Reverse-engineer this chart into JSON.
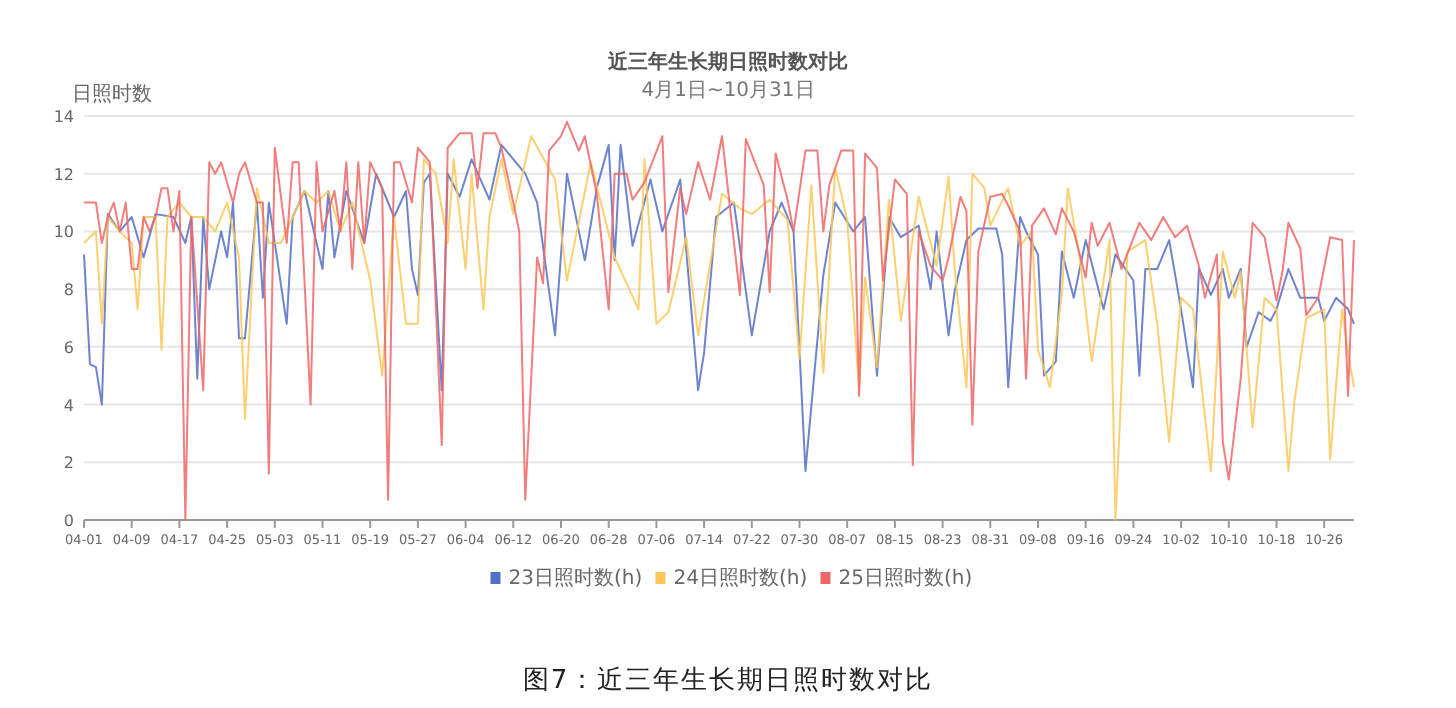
{
  "chart_data": {
    "type": "line",
    "title": "近三年生长期日照时数对比",
    "subtitle": "4月1日~10月31日",
    "ylabel": "日照时数",
    "annotations": [
      "图7：近三年生长期日照时数对比"
    ],
    "legend": "bottom",
    "grid": "y",
    "xlim": [
      "--04-01",
      "--10-31"
    ],
    "xticks": [
      {
        "value": "--04-01",
        "label": "04-01"
      },
      {
        "value": "--04-09",
        "label": "04-09"
      },
      {
        "value": "--04-17",
        "label": "04-17"
      },
      {
        "value": "--04-25",
        "label": "04-25"
      },
      {
        "value": "--05-03",
        "label": "05-03"
      },
      {
        "value": "--05-11",
        "label": "05-11"
      },
      {
        "value": "--05-19",
        "label": "05-19"
      },
      {
        "value": "--05-27",
        "label": "05-27"
      },
      {
        "value": "--06-04",
        "label": "06-04"
      },
      {
        "value": "--06-12",
        "label": "06-12"
      },
      {
        "value": "--06-20",
        "label": "06-20"
      },
      {
        "value": "--06-28",
        "label": "06-28"
      },
      {
        "value": "--07-06",
        "label": "07-06"
      },
      {
        "value": "--07-14",
        "label": "07-14"
      },
      {
        "value": "--07-22",
        "label": "07-22"
      },
      {
        "value": "--07-30",
        "label": "07-30"
      },
      {
        "value": "--08-07",
        "label": "08-07"
      },
      {
        "value": "--08-15",
        "label": "08-15"
      },
      {
        "value": "--08-23",
        "label": "08-23"
      },
      {
        "value": "--08-31",
        "label": "08-31"
      },
      {
        "value": "--09-08",
        "label": "09-08"
      },
      {
        "value": "--09-16",
        "label": "09-16"
      },
      {
        "value": "--09-24",
        "label": "09-24"
      },
      {
        "value": "--10-02",
        "label": "10-02"
      },
      {
        "value": "--10-10",
        "label": "10-10"
      },
      {
        "value": "--10-18",
        "label": "10-18"
      },
      {
        "value": "--10-26",
        "label": "10-26"
      }
    ],
    "ylim": [
      0,
      14
    ],
    "yticks": [
      0,
      2,
      4,
      6,
      8,
      10,
      12,
      14
    ],
    "series": [
      {
        "name": "23日照时数(h)",
        "color": "#5470c6",
        "x": [
          "--04-01",
          "--04-02",
          "--04-03",
          "--04-04",
          "--04-05",
          "--04-07",
          "--04-09",
          "--04-11",
          "--04-13",
          "--04-16",
          "--04-18",
          "--04-19",
          "--04-20",
          "--04-21",
          "--04-22",
          "--04-24",
          "--04-25",
          "--04-26",
          "--04-27",
          "--04-28",
          "--04-30",
          "--05-01",
          "--05-02",
          "--05-05",
          "--05-06",
          "--05-08",
          "--05-11",
          "--05-12",
          "--05-13",
          "--05-15",
          "--05-18",
          "--05-20",
          "--05-23",
          "--05-25",
          "--05-26",
          "--05-27",
          "--05-28",
          "--05-29",
          "--05-31",
          "--06-01",
          "--06-03",
          "--06-05",
          "--06-08",
          "--06-10",
          "--06-14",
          "--06-16",
          "--06-19",
          "--06-21",
          "--06-24",
          "--06-26",
          "--06-28",
          "--06-29",
          "--06-30",
          "--07-02",
          "--07-05",
          "--07-07",
          "--07-10",
          "--07-13",
          "--07-14",
          "--07-16",
          "--07-19",
          "--07-22",
          "--07-25",
          "--07-27",
          "--07-29",
          "--07-31",
          "--08-03",
          "--08-05",
          "--08-08",
          "--08-10",
          "--08-12",
          "--08-14",
          "--08-16",
          "--08-19",
          "--08-21",
          "--08-22",
          "--08-24",
          "--08-25",
          "--08-27",
          "--08-29",
          "--09-01",
          "--09-02",
          "--09-03",
          "--09-05",
          "--09-06",
          "--09-08",
          "--09-09",
          "--09-11",
          "--09-12",
          "--09-14",
          "--09-16",
          "--09-19",
          "--09-21",
          "--09-24",
          "--09-25",
          "--09-26",
          "--09-28",
          "--09-30",
          "--10-02",
          "--10-04",
          "--10-05",
          "--10-07",
          "--10-09",
          "--10-10",
          "--10-12",
          "--10-13",
          "--10-15",
          "--10-17",
          "--10-18",
          "--10-20",
          "--10-22",
          "--10-25",
          "--10-26",
          "--10-28",
          "--10-30",
          "--10-31"
        ],
        "values": [
          9.2,
          5.4,
          5.3,
          4.0,
          10.6,
          10.0,
          10.5,
          9.1,
          10.6,
          10.5,
          9.6,
          10.5,
          4.9,
          10.5,
          8.0,
          10.0,
          9.1,
          11.0,
          6.3,
          6.3,
          11.0,
          7.7,
          11.0,
          6.8,
          10.5,
          11.4,
          8.7,
          11.4,
          9.1,
          11.4,
          9.6,
          12.0,
          10.5,
          11.4,
          8.7,
          7.8,
          11.7,
          12.0,
          4.5,
          12.0,
          11.2,
          12.5,
          11.1,
          13.0,
          12.0,
          11.0,
          6.4,
          12.0,
          9.0,
          11.5,
          13.0,
          9.0,
          13.0,
          9.5,
          11.8,
          10.0,
          11.8,
          4.5,
          5.8,
          10.5,
          11.0,
          6.4,
          10.0,
          11.0,
          10.0,
          1.7,
          8.5,
          11.0,
          10.0,
          10.5,
          5.0,
          10.5,
          9.8,
          10.2,
          8.0,
          10.0,
          6.4,
          7.9,
          9.7,
          10.1,
          10.1,
          9.2,
          4.6,
          10.5,
          10.0,
          9.2,
          5.0,
          5.5,
          9.3,
          7.7,
          9.7,
          7.3,
          9.2,
          8.3,
          5.0,
          8.7,
          8.7,
          9.7,
          7.3,
          4.6,
          8.7,
          7.8,
          8.7,
          7.7,
          8.7,
          6.0,
          7.2,
          6.9,
          7.3,
          8.7,
          7.7,
          7.7,
          6.9,
          7.7,
          7.3,
          6.8
        ]
      },
      {
        "name": "24日照时数(h)",
        "color": "#fac858",
        "x": [
          "--04-01",
          "--04-03",
          "--04-04",
          "--04-05",
          "--04-07",
          "--04-09",
          "--04-10",
          "--04-11",
          "--04-13",
          "--04-14",
          "--04-15",
          "--04-17",
          "--04-19",
          "--04-21",
          "--04-23",
          "--04-25",
          "--04-27",
          "--04-28",
          "--04-30",
          "--05-02",
          "--05-04",
          "--05-06",
          "--05-08",
          "--05-10",
          "--05-12",
          "--05-14",
          "--05-16",
          "--05-19",
          "--05-21",
          "--05-23",
          "--05-25",
          "--05-27",
          "--05-28",
          "--05-30",
          "--06-01",
          "--06-02",
          "--06-04",
          "--06-05",
          "--06-07",
          "--06-08",
          "--06-10",
          "--06-12",
          "--06-15",
          "--06-19",
          "--06-21",
          "--06-25",
          "--06-29",
          "--07-03",
          "--07-04",
          "--07-06",
          "--07-08",
          "--07-11",
          "--07-13",
          "--07-17",
          "--07-20",
          "--07-22",
          "--07-25",
          "--07-28",
          "--07-30",
          "--08-01",
          "--08-03",
          "--08-05",
          "--08-07",
          "--08-09",
          "--08-10",
          "--08-12",
          "--08-14",
          "--08-16",
          "--08-19",
          "--08-22",
          "--08-24",
          "--08-25",
          "--08-27",
          "--08-28",
          "--08-30",
          "--08-31",
          "--09-03",
          "--09-05",
          "--09-07",
          "--09-08",
          "--09-10",
          "--09-12",
          "--09-13",
          "--09-15",
          "--09-17",
          "--09-20",
          "--09-21",
          "--09-23",
          "--09-26",
          "--09-28",
          "--09-30",
          "--10-02",
          "--10-04",
          "--10-07",
          "--10-09",
          "--10-11",
          "--10-12",
          "--10-14",
          "--10-16",
          "--10-18",
          "--10-20",
          "--10-21",
          "--10-23",
          "--10-26",
          "--10-27",
          "--10-29",
          "--10-30",
          "--10-31"
        ],
        "values": [
          9.6,
          10.0,
          6.8,
          10.5,
          10.0,
          9.6,
          7.3,
          10.5,
          10.5,
          5.9,
          10.5,
          11.0,
          10.5,
          10.5,
          10.0,
          11.0,
          9.1,
          3.5,
          11.5,
          9.6,
          9.6,
          10.5,
          11.4,
          11.0,
          11.4,
          10.0,
          11.0,
          8.3,
          5.0,
          10.5,
          6.8,
          6.8,
          12.5,
          12.0,
          9.6,
          12.5,
          8.7,
          12.0,
          7.3,
          10.5,
          12.5,
          10.6,
          13.3,
          11.8,
          8.3,
          12.4,
          9.1,
          7.3,
          12.5,
          6.8,
          7.2,
          9.8,
          6.4,
          11.3,
          10.8,
          10.6,
          11.1,
          10.4,
          5.6,
          11.6,
          5.1,
          12.2,
          10.4,
          4.5,
          8.4,
          5.3,
          11.1,
          6.9,
          11.2,
          8.8,
          11.9,
          8.8,
          4.6,
          12.0,
          11.5,
          10.2,
          11.5,
          9.5,
          10.0,
          5.9,
          4.6,
          7.8,
          11.5,
          9.1,
          5.5,
          9.7,
          0.0,
          9.3,
          9.7,
          6.8,
          2.7,
          7.7,
          7.3,
          1.7,
          9.3,
          7.7,
          8.6,
          3.2,
          7.7,
          7.3,
          1.7,
          4.1,
          7.0,
          7.3,
          2.1,
          7.3,
          5.8,
          4.6
        ]
      },
      {
        "name": "25日照时数(h)",
        "color": "#ee6666",
        "x": [
          "--04-01",
          "--04-03",
          "--04-04",
          "--04-05",
          "--04-06",
          "--04-07",
          "--04-08",
          "--04-09",
          "--04-10",
          "--04-11",
          "--04-12",
          "--04-13",
          "--04-14",
          "--04-15",
          "--04-16",
          "--04-17",
          "--04-18",
          "--04-19",
          "--04-21",
          "--04-22",
          "--04-23",
          "--04-24",
          "--04-26",
          "--04-27",
          "--04-28",
          "--04-30",
          "--05-01",
          "--05-02",
          "--05-03",
          "--05-05",
          "--05-06",
          "--05-07",
          "--05-09",
          "--05-10",
          "--05-11",
          "--05-13",
          "--05-14",
          "--05-15",
          "--05-16",
          "--05-17",
          "--05-18",
          "--05-19",
          "--05-21",
          "--05-22",
          "--05-23",
          "--05-24",
          "--05-26",
          "--05-27",
          "--05-29",
          "--05-31",
          "--06-01",
          "--06-03",
          "--06-05",
          "--06-06",
          "--06-07",
          "--06-09",
          "--06-10",
          "--06-12",
          "--06-13",
          "--06-14",
          "--06-16",
          "--06-17",
          "--06-18",
          "--06-20",
          "--06-21",
          "--06-23",
          "--06-24",
          "--06-26",
          "--06-28",
          "--06-29",
          "--07-01",
          "--07-02",
          "--07-04",
          "--07-07",
          "--07-08",
          "--07-10",
          "--07-11",
          "--07-13",
          "--07-15",
          "--07-17",
          "--07-20",
          "--07-21",
          "--07-24",
          "--07-25",
          "--07-26",
          "--07-28",
          "--07-29",
          "--07-31",
          "--08-02",
          "--08-03",
          "--08-04",
          "--08-06",
          "--08-08",
          "--08-09",
          "--08-10",
          "--08-12",
          "--08-13",
          "--08-15",
          "--08-17",
          "--08-18",
          "--08-19",
          "--08-21",
          "--08-23",
          "--08-24",
          "--08-26",
          "--08-27",
          "--08-28",
          "--08-29",
          "--08-31",
          "--09-02",
          "--09-03",
          "--09-05",
          "--09-06",
          "--09-07",
          "--09-09",
          "--09-11",
          "--09-12",
          "--09-14",
          "--09-16",
          "--09-17",
          "--09-18",
          "--09-20",
          "--09-22",
          "--09-25",
          "--09-27",
          "--09-29",
          "--10-01",
          "--10-03",
          "--10-05",
          "--10-06",
          "--10-08",
          "--10-09",
          "--10-10",
          "--10-12",
          "--10-13",
          "--10-14",
          "--10-16",
          "--10-18",
          "--10-19",
          "--10-20",
          "--10-22",
          "--10-23",
          "--10-25",
          "--10-27",
          "--10-29",
          "--10-30",
          "--10-31"
        ],
        "values": [
          11.0,
          11.0,
          9.6,
          10.5,
          11.0,
          10.0,
          11.0,
          8.7,
          8.7,
          10.5,
          10.0,
          10.5,
          11.5,
          11.5,
          10.0,
          11.4,
          0.0,
          10.5,
          4.5,
          12.4,
          12.0,
          12.4,
          11.0,
          12.0,
          12.4,
          11.0,
          11.0,
          1.6,
          12.9,
          9.6,
          12.4,
          12.4,
          4.0,
          12.4,
          10.0,
          11.4,
          10.0,
          12.4,
          8.7,
          12.4,
          9.6,
          12.4,
          11.5,
          0.7,
          12.4,
          12.4,
          11.0,
          12.9,
          12.4,
          2.6,
          12.9,
          13.4,
          13.4,
          11.5,
          13.4,
          13.4,
          12.9,
          11.0,
          10.0,
          0.7,
          9.1,
          8.2,
          12.8,
          13.3,
          13.8,
          12.8,
          13.3,
          11.3,
          7.3,
          12.0,
          12.0,
          11.1,
          11.7,
          13.3,
          7.9,
          11.5,
          10.6,
          12.4,
          11.1,
          13.3,
          7.8,
          13.2,
          11.6,
          7.9,
          12.7,
          11.1,
          10.0,
          12.8,
          12.8,
          10.0,
          11.6,
          12.8,
          12.8,
          4.3,
          12.7,
          12.2,
          8.3,
          11.8,
          11.3,
          1.9,
          10.0,
          8.8,
          8.3,
          9.1,
          11.2,
          10.7,
          3.3,
          9.3,
          11.2,
          11.3,
          10.9,
          10.0,
          4.9,
          10.2,
          10.8,
          9.9,
          10.8,
          10.0,
          8.4,
          10.3,
          9.5,
          10.3,
          8.7,
          10.3,
          9.7,
          10.5,
          9.8,
          10.2,
          8.8,
          7.7,
          9.2,
          2.7,
          1.4,
          4.9,
          7.7,
          10.3,
          9.8,
          7.6,
          8.6,
          10.3,
          9.4,
          7.1,
          7.7,
          9.8,
          9.7,
          4.3,
          9.7
        ]
      }
    ]
  }
}
